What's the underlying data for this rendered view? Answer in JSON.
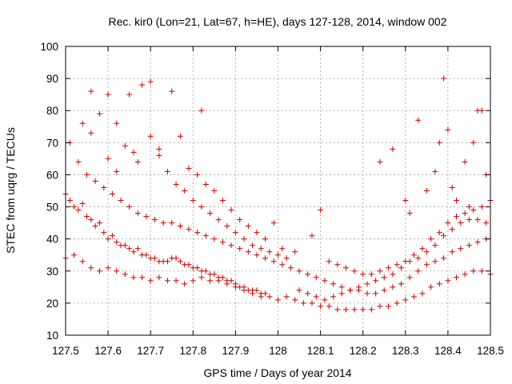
{
  "chart_data": {
    "type": "scatter",
    "title": "Rec. kir0 (Lon=21, Lat=67, h=HE), days 127-128, 2014, window 002",
    "xlabel": "GPS time / Days of year 2014",
    "ylabel": "STEC from uqrg / TECUs",
    "xlim": [
      127.5,
      128.5
    ],
    "ylim": [
      10,
      100
    ],
    "x_ticks": [
      "127.5",
      "127.6",
      "127.7",
      "127.8",
      "127.9",
      "128",
      "128.1",
      "128.2",
      "128.3",
      "128.4",
      "128.5"
    ],
    "y_ticks": [
      "10",
      "20",
      "30",
      "40",
      "50",
      "60",
      "70",
      "80",
      "90",
      "100"
    ],
    "grid": true,
    "legend": "none",
    "marker": "plus",
    "color": "#cc0000",
    "series": [
      {
        "points": [
          [
            127.5,
            54
          ],
          [
            127.51,
            52
          ],
          [
            127.52,
            50
          ],
          [
            127.53,
            49
          ],
          [
            127.54,
            51
          ],
          [
            127.55,
            47
          ],
          [
            127.56,
            46
          ],
          [
            127.57,
            44
          ],
          [
            127.58,
            45
          ],
          [
            127.59,
            42
          ],
          [
            127.6,
            40
          ],
          [
            127.61,
            41
          ],
          [
            127.62,
            39
          ],
          [
            127.63,
            38
          ],
          [
            127.64,
            38
          ],
          [
            127.65,
            37
          ],
          [
            127.66,
            36
          ],
          [
            127.67,
            37
          ],
          [
            127.68,
            35
          ],
          [
            127.69,
            35
          ],
          [
            127.7,
            34
          ],
          [
            127.71,
            34
          ],
          [
            127.72,
            33
          ],
          [
            127.73,
            33
          ],
          [
            127.74,
            33
          ],
          [
            127.75,
            34
          ],
          [
            127.76,
            34
          ],
          [
            127.77,
            33
          ],
          [
            127.78,
            32
          ],
          [
            127.79,
            32
          ],
          [
            127.8,
            31
          ],
          [
            127.81,
            31
          ],
          [
            127.82,
            30
          ],
          [
            127.83,
            30
          ],
          [
            127.84,
            29
          ],
          [
            127.85,
            29
          ],
          [
            127.86,
            28
          ],
          [
            127.87,
            28
          ],
          [
            127.88,
            27
          ],
          [
            127.89,
            27
          ],
          [
            127.9,
            26
          ],
          [
            127.91,
            25
          ],
          [
            127.92,
            25
          ],
          [
            127.93,
            24
          ],
          [
            127.94,
            24
          ],
          [
            127.95,
            24
          ],
          [
            127.96,
            23
          ],
          [
            127.97,
            23
          ],
          [
            127.5,
            34
          ],
          [
            127.52,
            35
          ],
          [
            127.54,
            33
          ],
          [
            127.56,
            31
          ],
          [
            127.58,
            30
          ],
          [
            127.6,
            31
          ],
          [
            127.62,
            30
          ],
          [
            127.64,
            29
          ],
          [
            127.66,
            28
          ],
          [
            127.68,
            28
          ],
          [
            127.7,
            27
          ],
          [
            127.72,
            28
          ],
          [
            127.74,
            27
          ],
          [
            127.76,
            27
          ],
          [
            127.78,
            26
          ],
          [
            127.8,
            27
          ],
          [
            127.82,
            28
          ],
          [
            127.84,
            27
          ],
          [
            127.86,
            27
          ],
          [
            127.88,
            26
          ],
          [
            127.9,
            25
          ],
          [
            127.92,
            24
          ],
          [
            127.94,
            23
          ],
          [
            127.96,
            22
          ],
          [
            127.98,
            22
          ],
          [
            128.0,
            21
          ],
          [
            128.02,
            22
          ],
          [
            128.04,
            21
          ],
          [
            128.06,
            20
          ],
          [
            128.08,
            20
          ],
          [
            128.1,
            19
          ],
          [
            128.12,
            19
          ],
          [
            128.14,
            18
          ],
          [
            128.16,
            18
          ],
          [
            128.18,
            18
          ],
          [
            128.2,
            18
          ],
          [
            128.22,
            18
          ],
          [
            128.24,
            19
          ],
          [
            128.26,
            19
          ],
          [
            128.28,
            20
          ],
          [
            128.3,
            21
          ],
          [
            128.32,
            22
          ],
          [
            128.34,
            23
          ],
          [
            128.36,
            25
          ],
          [
            128.38,
            26
          ],
          [
            128.4,
            27
          ],
          [
            128.42,
            28
          ],
          [
            128.44,
            29
          ],
          [
            128.46,
            30
          ],
          [
            128.48,
            30
          ],
          [
            128.5,
            29
          ],
          [
            127.51,
            70
          ],
          [
            127.53,
            64
          ],
          [
            127.55,
            60
          ],
          [
            127.57,
            58
          ],
          [
            127.59,
            56
          ],
          [
            127.61,
            54
          ],
          [
            127.63,
            52
          ],
          [
            127.65,
            50
          ],
          [
            127.67,
            48
          ],
          [
            127.69,
            47
          ],
          [
            127.71,
            46
          ],
          [
            127.73,
            45
          ],
          [
            127.75,
            45
          ],
          [
            127.77,
            44
          ],
          [
            127.79,
            43
          ],
          [
            127.81,
            42
          ],
          [
            127.83,
            41
          ],
          [
            127.85,
            40
          ],
          [
            127.87,
            39
          ],
          [
            127.89,
            38
          ],
          [
            127.91,
            37
          ],
          [
            127.93,
            36
          ],
          [
            127.95,
            35
          ],
          [
            127.97,
            34
          ],
          [
            127.99,
            33
          ],
          [
            128.01,
            32
          ],
          [
            128.03,
            31
          ],
          [
            128.05,
            30
          ],
          [
            128.07,
            29
          ],
          [
            128.09,
            28
          ],
          [
            128.11,
            27
          ],
          [
            128.13,
            26
          ],
          [
            128.15,
            25
          ],
          [
            128.17,
            24
          ],
          [
            128.19,
            24
          ],
          [
            128.21,
            23
          ],
          [
            128.23,
            23
          ],
          [
            128.25,
            24
          ],
          [
            128.27,
            25
          ],
          [
            128.29,
            26
          ],
          [
            128.31,
            28
          ],
          [
            128.33,
            30
          ],
          [
            128.35,
            32
          ],
          [
            128.37,
            33
          ],
          [
            128.39,
            34
          ],
          [
            128.41,
            36
          ],
          [
            128.43,
            37
          ],
          [
            128.45,
            38
          ],
          [
            128.47,
            39
          ],
          [
            128.49,
            40
          ],
          [
            127.54,
            76
          ],
          [
            127.56,
            73
          ],
          [
            127.58,
            79
          ],
          [
            127.6,
            85
          ],
          [
            127.62,
            76
          ],
          [
            127.64,
            69
          ],
          [
            127.66,
            67
          ],
          [
            127.68,
            88
          ],
          [
            127.7,
            72
          ],
          [
            127.72,
            66
          ],
          [
            127.74,
            61
          ],
          [
            127.76,
            57
          ],
          [
            127.78,
            55
          ],
          [
            127.8,
            52
          ],
          [
            127.82,
            50
          ],
          [
            127.84,
            48
          ],
          [
            127.86,
            46
          ],
          [
            127.88,
            44
          ],
          [
            127.9,
            42
          ],
          [
            127.92,
            40
          ],
          [
            127.94,
            38
          ],
          [
            127.96,
            37
          ],
          [
            127.98,
            36
          ],
          [
            128.0,
            35
          ],
          [
            128.02,
            34
          ],
          [
            127.56,
            86
          ],
          [
            127.6,
            65
          ],
          [
            127.62,
            61
          ],
          [
            127.65,
            85
          ],
          [
            127.67,
            64
          ],
          [
            127.7,
            89
          ],
          [
            127.72,
            68
          ],
          [
            127.75,
            86
          ],
          [
            127.77,
            72
          ],
          [
            127.82,
            80
          ],
          [
            127.79,
            62
          ],
          [
            127.81,
            60
          ],
          [
            127.83,
            57
          ],
          [
            127.85,
            55
          ],
          [
            127.87,
            52
          ],
          [
            127.89,
            49
          ],
          [
            127.91,
            46
          ],
          [
            127.93,
            44
          ],
          [
            127.95,
            42
          ],
          [
            127.97,
            40
          ],
          [
            127.99,
            45
          ],
          [
            128.01,
            37
          ],
          [
            128.04,
            36
          ],
          [
            128.08,
            41
          ],
          [
            128.1,
            49
          ],
          [
            128.12,
            33
          ],
          [
            128.14,
            32
          ],
          [
            128.16,
            31
          ],
          [
            128.18,
            30
          ],
          [
            128.2,
            29
          ],
          [
            128.22,
            29
          ],
          [
            128.24,
            30
          ],
          [
            128.26,
            31
          ],
          [
            128.28,
            32
          ],
          [
            128.3,
            33
          ],
          [
            128.32,
            35
          ],
          [
            128.34,
            37
          ],
          [
            128.36,
            40
          ],
          [
            128.38,
            42
          ],
          [
            128.4,
            45
          ],
          [
            128.42,
            47
          ],
          [
            128.44,
            48
          ],
          [
            128.46,
            49
          ],
          [
            128.48,
            50
          ],
          [
            128.24,
            64
          ],
          [
            128.27,
            68
          ],
          [
            128.3,
            52
          ],
          [
            128.31,
            48
          ],
          [
            128.33,
            77
          ],
          [
            128.35,
            55
          ],
          [
            128.37,
            61
          ],
          [
            128.38,
            70
          ],
          [
            128.39,
            90
          ],
          [
            128.4,
            74
          ],
          [
            128.41,
            56
          ],
          [
            128.42,
            52
          ],
          [
            128.44,
            64
          ],
          [
            128.45,
            50
          ],
          [
            128.46,
            70
          ],
          [
            128.47,
            80
          ],
          [
            128.48,
            80
          ],
          [
            128.49,
            60
          ],
          [
            128.5,
            52
          ],
          [
            128.05,
            24
          ],
          [
            128.07,
            23
          ],
          [
            128.09,
            22
          ],
          [
            128.11,
            21
          ],
          [
            128.13,
            22
          ],
          [
            128.15,
            23
          ],
          [
            128.17,
            24
          ],
          [
            128.19,
            25
          ],
          [
            128.21,
            26
          ],
          [
            128.23,
            27
          ],
          [
            128.25,
            28
          ],
          [
            128.27,
            29
          ],
          [
            128.29,
            31
          ],
          [
            128.31,
            33
          ],
          [
            128.33,
            34
          ],
          [
            128.35,
            36
          ],
          [
            128.37,
            38
          ],
          [
            128.39,
            41
          ],
          [
            128.41,
            43
          ],
          [
            128.43,
            45
          ],
          [
            128.45,
            46
          ],
          [
            128.47,
            46
          ],
          [
            128.49,
            45
          ]
        ]
      }
    ]
  }
}
